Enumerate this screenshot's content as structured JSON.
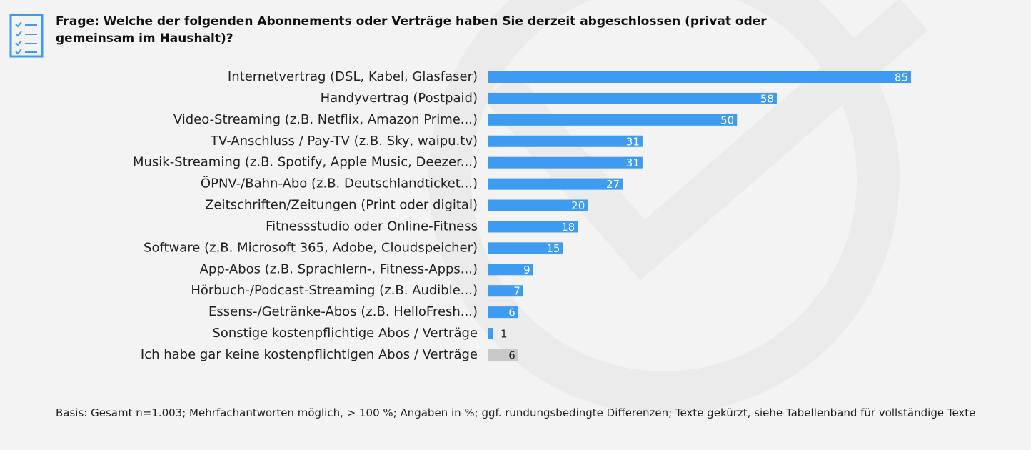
{
  "chart_data": {
    "type": "bar",
    "orientation": "horizontal",
    "title": "Frage: Welche der folgenden Abonnements oder Verträge haben Sie derzeit abgeschlossen (privat oder gemeinsam im Haushalt)?",
    "footnote": "Basis: Gesamt n=1.003; Mehrfachantworten möglich, > 100 %; Angaben in %; ggf. rundungsbedingte Differenzen; Texte gekürzt, siehe Tabellenband für vollständige Texte",
    "categories": [
      "Internetvertrag (DSL, Kabel, Glasfaser)",
      "Handyvertrag (Postpaid)",
      "Video-Streaming (z.B. Netflix, Amazon Prime...)",
      "TV-Anschluss / Pay-TV (z.B. Sky, waipu.tv)",
      "Musik-Streaming (z.B. Spotify, Apple Music, Deezer...)",
      "ÖPNV-/Bahn-Abo (z.B. Deutschlandticket...)",
      "Zeitschriften/Zeitungen (Print oder digital)",
      "Fitnessstudio oder Online-Fitness",
      "Software (z.B. Microsoft 365, Adobe, Cloudspeicher)",
      "App-Abos (z.B. Sprachlern-, Fitness-Apps...)",
      "Hörbuch-/Podcast-Streaming (z.B. Audible...)",
      "Essens-/Getränke-Abos (z.B. HelloFresh...)",
      "Sonstige kostenpflichtige Abos / Verträge",
      "Ich habe gar keine kostenpflichtigen Abos / Verträge"
    ],
    "values": [
      85,
      58,
      50,
      31,
      31,
      27,
      20,
      18,
      15,
      9,
      7,
      6,
      1,
      6
    ],
    "colors": [
      "#3d9bf2",
      "#3d9bf2",
      "#3d9bf2",
      "#3d9bf2",
      "#3d9bf2",
      "#3d9bf2",
      "#3d9bf2",
      "#3d9bf2",
      "#3d9bf2",
      "#3d9bf2",
      "#3d9bf2",
      "#3d9bf2",
      "#3d9bf2",
      "#c9c9c9"
    ]
  }
}
